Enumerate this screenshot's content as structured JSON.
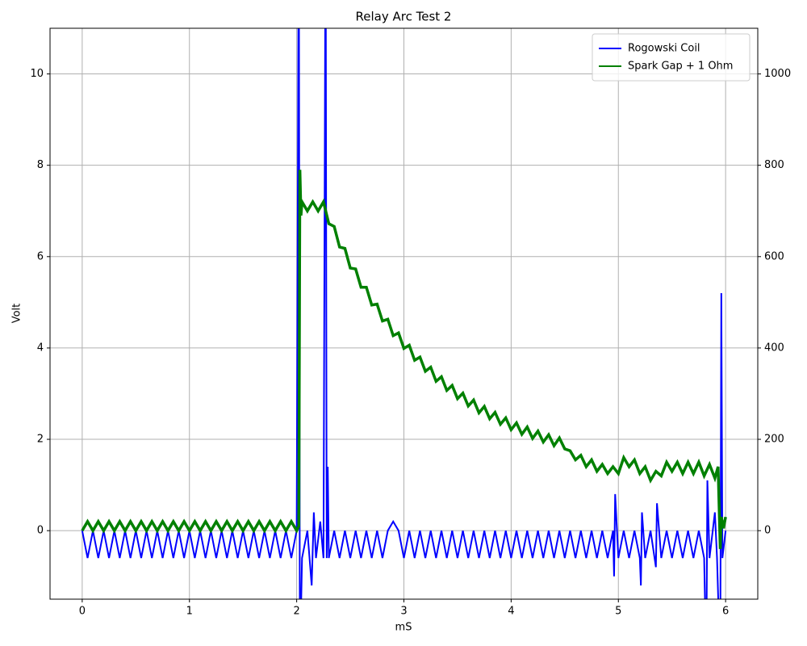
{
  "chart_data": {
    "type": "line",
    "title": "Relay Arc Test 2",
    "x_label": "mS",
    "y_label": "Volt",
    "xlim": [
      -0.3,
      6.3
    ],
    "xticks": [
      0,
      1,
      2,
      3,
      4,
      5,
      6
    ],
    "ylim": [
      -1.5,
      11
    ],
    "yticks": [
      0,
      2,
      4,
      6,
      8,
      10
    ],
    "y2lim": [
      -150,
      1100
    ],
    "y2ticks": [
      0,
      200,
      400,
      600,
      800,
      1000
    ],
    "grid": true,
    "legend": "upper right",
    "series": [
      {
        "name": "Rogowski Coil",
        "color": "#0000ff",
        "axis": "y",
        "x": [
          0,
          0.05,
          0.1,
          0.15,
          0.2,
          0.25,
          0.3,
          0.35,
          0.4,
          0.45,
          0.5,
          0.55,
          0.6,
          0.65,
          0.7,
          0.75,
          0.8,
          0.85,
          0.9,
          0.95,
          1,
          1.05,
          1.1,
          1.15,
          1.2,
          1.25,
          1.3,
          1.35,
          1.4,
          1.45,
          1.5,
          1.55,
          1.6,
          1.65,
          1.7,
          1.75,
          1.8,
          1.85,
          1.9,
          1.95,
          2,
          2.02,
          2.03,
          2.05,
          2.1,
          2.14,
          2.16,
          2.18,
          2.22,
          2.25,
          2.27,
          2.28,
          2.29,
          2.3,
          2.35,
          2.4,
          2.45,
          2.5,
          2.55,
          2.6,
          2.65,
          2.7,
          2.75,
          2.8,
          2.85,
          2.9,
          2.95,
          3,
          3.05,
          3.1,
          3.15,
          3.2,
          3.25,
          3.3,
          3.35,
          3.4,
          3.45,
          3.5,
          3.55,
          3.6,
          3.65,
          3.7,
          3.75,
          3.8,
          3.85,
          3.9,
          3.95,
          4,
          4.05,
          4.1,
          4.15,
          4.2,
          4.25,
          4.3,
          4.35,
          4.4,
          4.45,
          4.5,
          4.55,
          4.6,
          4.65,
          4.7,
          4.75,
          4.8,
          4.85,
          4.9,
          4.95,
          4.96,
          4.97,
          5,
          5.05,
          5.1,
          5.15,
          5.2,
          5.21,
          5.22,
          5.25,
          5.3,
          5.35,
          5.36,
          5.4,
          5.45,
          5.5,
          5.55,
          5.6,
          5.65,
          5.7,
          5.75,
          5.8,
          5.82,
          5.83,
          5.85,
          5.9,
          5.92,
          5.95,
          5.96,
          5.97,
          6
        ],
        "values": [
          0,
          -0.6,
          0,
          -0.6,
          0,
          -0.6,
          0,
          -0.6,
          0,
          -0.6,
          0,
          -0.6,
          0,
          -0.6,
          0,
          -0.6,
          0,
          -0.6,
          0,
          -0.6,
          0,
          -0.6,
          0,
          -0.6,
          0,
          -0.6,
          0,
          -0.6,
          0,
          -0.6,
          0,
          -0.6,
          0,
          -0.6,
          0,
          -0.6,
          0,
          -0.6,
          0,
          -0.6,
          0,
          14,
          -3,
          -0.6,
          0,
          -1.2,
          0.4,
          -0.6,
          0.2,
          -0.6,
          14,
          -0.6,
          1.4,
          -0.6,
          0,
          -0.6,
          0,
          -0.6,
          0,
          -0.6,
          0,
          -0.6,
          0,
          -0.6,
          0,
          0.2,
          0,
          -0.6,
          0,
          -0.6,
          0,
          -0.6,
          0,
          -0.6,
          0,
          -0.6,
          0,
          -0.6,
          0,
          -0.6,
          0,
          -0.6,
          0,
          -0.6,
          0,
          -0.6,
          0,
          -0.6,
          0,
          -0.6,
          0,
          -0.6,
          0,
          -0.6,
          0,
          -0.6,
          0,
          -0.6,
          0,
          -0.6,
          0,
          -0.6,
          0,
          -0.6,
          0,
          -0.6,
          0,
          -1,
          0.8,
          -0.6,
          0,
          -0.6,
          0,
          -0.6,
          -1.2,
          0.4,
          -0.6,
          0,
          -0.8,
          0.6,
          -0.6,
          0,
          -0.6,
          0,
          -0.6,
          0,
          -0.6,
          0,
          -0.6,
          -3,
          1.1,
          -0.6,
          0.4,
          -0.6,
          -3,
          5.2,
          -0.6,
          0
        ]
      },
      {
        "name": "Spark Gap + 1 Ohm",
        "color": "#008000",
        "axis": "y2",
        "x": [
          0,
          0.05,
          0.1,
          0.15,
          0.2,
          0.25,
          0.3,
          0.35,
          0.4,
          0.45,
          0.5,
          0.55,
          0.6,
          0.65,
          0.7,
          0.75,
          0.8,
          0.85,
          0.9,
          0.95,
          1,
          1.05,
          1.1,
          1.15,
          1.2,
          1.25,
          1.3,
          1.35,
          1.4,
          1.45,
          1.5,
          1.55,
          1.6,
          1.65,
          1.7,
          1.75,
          1.8,
          1.85,
          1.9,
          1.95,
          2,
          2.02,
          2.03,
          2.04,
          2.05,
          2.1,
          2.15,
          2.2,
          2.25,
          2.3,
          2.35,
          2.4,
          2.45,
          2.5,
          2.55,
          2.6,
          2.65,
          2.7,
          2.75,
          2.8,
          2.85,
          2.9,
          2.95,
          3,
          3.05,
          3.1,
          3.15,
          3.2,
          3.25,
          3.3,
          3.35,
          3.4,
          3.45,
          3.5,
          3.55,
          3.6,
          3.65,
          3.7,
          3.75,
          3.8,
          3.85,
          3.9,
          3.95,
          4,
          4.05,
          4.1,
          4.15,
          4.2,
          4.25,
          4.3,
          4.35,
          4.4,
          4.45,
          4.5,
          4.55,
          4.6,
          4.65,
          4.7,
          4.75,
          4.8,
          4.85,
          4.9,
          4.95,
          5,
          5.05,
          5.1,
          5.15,
          5.2,
          5.25,
          5.3,
          5.35,
          5.4,
          5.45,
          5.5,
          5.55,
          5.6,
          5.65,
          5.7,
          5.75,
          5.8,
          5.85,
          5.9,
          5.93,
          5.95,
          5.96,
          5.98,
          6
        ],
        "values": [
          0,
          20,
          0,
          20,
          0,
          20,
          0,
          20,
          0,
          20,
          0,
          20,
          0,
          20,
          0,
          20,
          0,
          20,
          0,
          20,
          0,
          20,
          0,
          20,
          0,
          20,
          0,
          20,
          0,
          20,
          0,
          20,
          0,
          20,
          0,
          20,
          0,
          20,
          0,
          20,
          0,
          10,
          790,
          690,
          720,
          700,
          720,
          700,
          720,
          672,
          666,
          621,
          618,
          575,
          573,
          533,
          533,
          494,
          496,
          459,
          463,
          427,
          433,
          399,
          406,
          373,
          380,
          349,
          358,
          327,
          337,
          307,
          318,
          289,
          301,
          273,
          286,
          258,
          272,
          245,
          259,
          233,
          247,
          221,
          236,
          211,
          227,
          202,
          218,
          194,
          210,
          186,
          203,
          179,
          175,
          155,
          165,
          140,
          155,
          130,
          145,
          125,
          140,
          125,
          160,
          140,
          155,
          125,
          140,
          110,
          130,
          120,
          150,
          130,
          150,
          125,
          150,
          125,
          150,
          120,
          145,
          115,
          140,
          -40,
          30,
          5,
          30
        ]
      }
    ]
  }
}
